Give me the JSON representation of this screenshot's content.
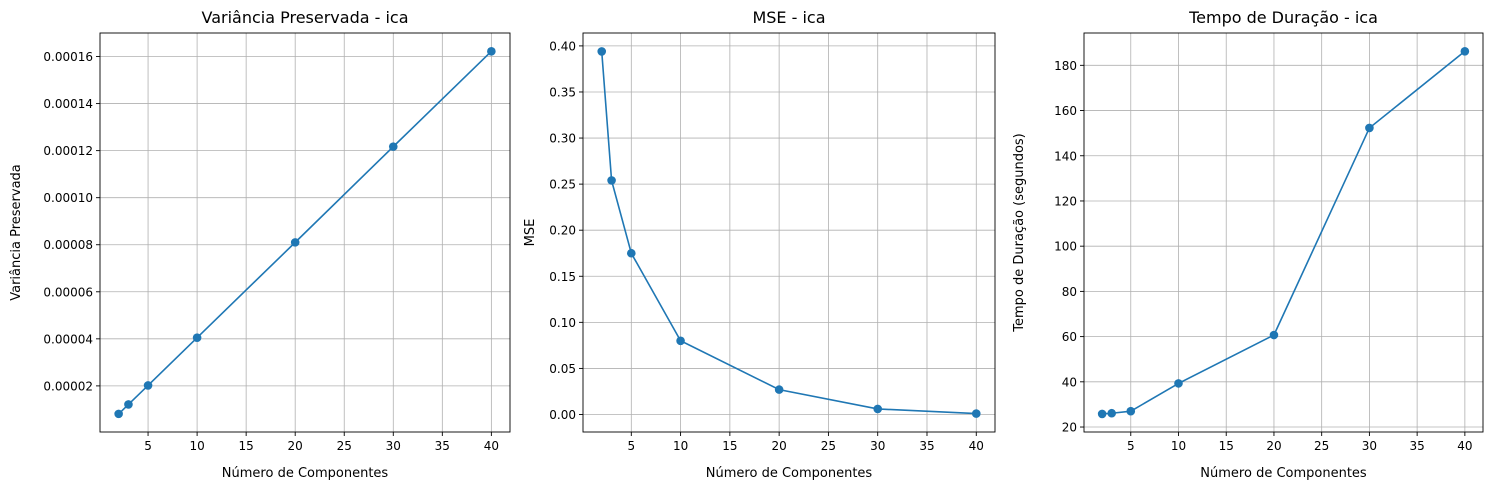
{
  "chart_data": [
    {
      "type": "line",
      "title": "Variância Preservada - ica",
      "xlabel": "Número de Componentes",
      "ylabel": "Variância Preservada",
      "x": [
        2,
        3,
        5,
        10,
        20,
        30,
        40
      ],
      "series": [
        {
          "values": [
            8.1e-06,
            1.21e-05,
            2.02e-05,
            4.05e-05,
            8.1e-05,
            0.0001217,
            0.0001622
          ]
        }
      ],
      "xlim": [
        0.1,
        41.9
      ],
      "ylim": [
        4e-07,
        0.00017
      ],
      "xticks": [
        5,
        10,
        15,
        20,
        25,
        30,
        35,
        40
      ],
      "xtick_labels": [
        "5",
        "10",
        "15",
        "20",
        "25",
        "30",
        "35",
        "40"
      ],
      "yticks": [
        2e-05,
        4e-05,
        6e-05,
        8e-05,
        0.0001,
        0.00012,
        0.00014,
        0.00016
      ],
      "ytick_labels": [
        "0.00002",
        "0.00004",
        "0.00006",
        "0.00008",
        "0.00010",
        "0.00012",
        "0.00014",
        "0.00016"
      ],
      "grid": true,
      "marker": "circle",
      "color": "#1f77b4"
    },
    {
      "type": "line",
      "title": "MSE - ica",
      "xlabel": "Número de Componentes",
      "ylabel": "MSE",
      "x": [
        2,
        3,
        5,
        10,
        20,
        30,
        40
      ],
      "series": [
        {
          "values": [
            0.394,
            0.254,
            0.175,
            0.08,
            0.027,
            0.006,
            0.001
          ]
        }
      ],
      "xlim": [
        0.1,
        41.9
      ],
      "ylim": [
        -0.019,
        0.414
      ],
      "xticks": [
        5,
        10,
        15,
        20,
        25,
        30,
        35,
        40
      ],
      "xtick_labels": [
        "5",
        "10",
        "15",
        "20",
        "25",
        "30",
        "35",
        "40"
      ],
      "yticks": [
        0,
        0.05,
        0.1,
        0.15,
        0.2,
        0.25,
        0.3,
        0.35,
        0.4
      ],
      "ytick_labels": [
        "0.00",
        "0.05",
        "0.10",
        "0.15",
        "0.20",
        "0.25",
        "0.30",
        "0.35",
        "0.40"
      ],
      "grid": true,
      "marker": "circle",
      "color": "#1f77b4"
    },
    {
      "type": "line",
      "title": "Tempo de Duração - ica",
      "xlabel": "Número de Componentes",
      "ylabel": "Tempo de Duração (segundos)",
      "x": [
        2,
        3,
        5,
        10,
        20,
        30,
        40
      ],
      "series": [
        {
          "values": [
            25.8,
            26.1,
            27.0,
            39.3,
            60.7,
            152.3,
            186.2
          ]
        }
      ],
      "xlim": [
        0.1,
        41.9
      ],
      "ylim": [
        17.8,
        194.3
      ],
      "xticks": [
        5,
        10,
        15,
        20,
        25,
        30,
        35,
        40
      ],
      "xtick_labels": [
        "5",
        "10",
        "15",
        "20",
        "25",
        "30",
        "35",
        "40"
      ],
      "yticks": [
        20,
        40,
        60,
        80,
        100,
        120,
        140,
        160,
        180
      ],
      "ytick_labels": [
        "20",
        "40",
        "60",
        "80",
        "100",
        "120",
        "140",
        "160",
        "180"
      ],
      "grid": true,
      "marker": "circle",
      "color": "#1f77b4"
    }
  ]
}
